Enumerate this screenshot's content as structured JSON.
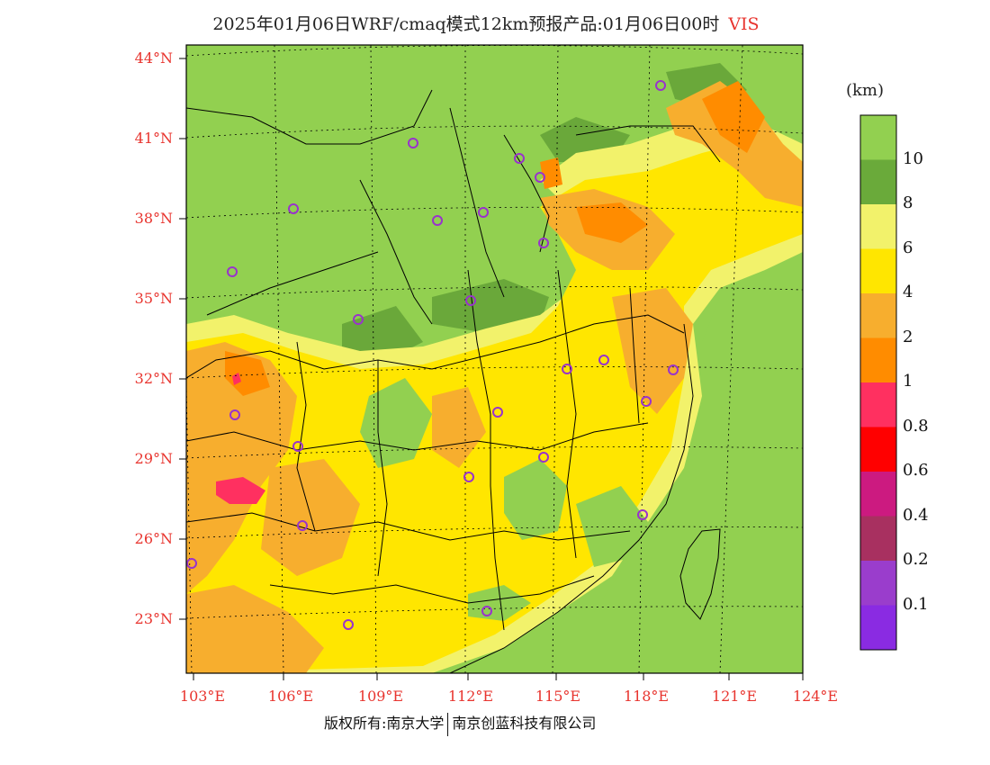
{
  "title": {
    "text": "2025年01月06日WRF/cmaq模式12km预报产品:01月06日00时",
    "variable": "VIS"
  },
  "colors": {
    "land_green": "#92d050",
    "ocean_green": "#92d050",
    "dark_green": "#6aa83a",
    "yellow": "#ffe600",
    "light_yellow": "#f4f46a",
    "orange": "#f7ae2e",
    "deep_orange": "#ff8c00",
    "red_pink": "#ff2d55",
    "marker": "#9933cc"
  },
  "map": {
    "lat_labels": [
      "44°N",
      "41°N",
      "38°N",
      "35°N",
      "32°N",
      "29°N",
      "26°N",
      "23°N"
    ],
    "lon_labels": [
      "103°E",
      "106°E",
      "109°E",
      "112°E",
      "115°E",
      "118°E",
      "121°E",
      "124°E"
    ],
    "grid": "dotted"
  },
  "colorbar": {
    "unit": "(km)",
    "bins": [
      {
        "color": "#92d050"
      },
      {
        "color": "#6aaa3a",
        "label": "10"
      },
      {
        "color": "#f2f26b",
        "label": "8"
      },
      {
        "color": "#ffe600",
        "label": "6"
      },
      {
        "color": "#f7ae2e",
        "label": "4"
      },
      {
        "color": "#ff8c00",
        "label": "2"
      },
      {
        "color": "#ff3060",
        "label": "1"
      },
      {
        "color": "#ff0000",
        "label": "0.8"
      },
      {
        "color": "#cc1a80",
        "label": "0.6"
      },
      {
        "color": "#a83060",
        "label": "0.4"
      },
      {
        "color": "#9a3dcc",
        "label": "0.2"
      },
      {
        "color": "#8a2be2",
        "label": "0.1"
      }
    ]
  },
  "footer": {
    "left": "版权所有:南京大学",
    "right": "南京创蓝科技有限公司"
  }
}
